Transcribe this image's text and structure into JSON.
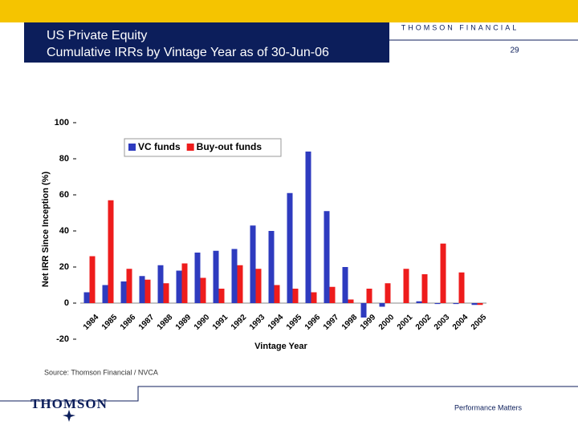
{
  "header": {
    "title": "US Private Equity",
    "subtitle": "Cumulative IRRs by Vintage Year as of 30-Jun-06",
    "company": "THOMSON FINANCIAL",
    "page_number": "29"
  },
  "chart_data": {
    "type": "bar",
    "y_label": "Net IRR Since Inception (%)",
    "x_label": "Vintage Year",
    "categories": [
      "1984",
      "1985",
      "1986",
      "1987",
      "1988",
      "1989",
      "1990",
      "1991",
      "1992",
      "1993",
      "1994",
      "1995",
      "1996",
      "1997",
      "1998",
      "1999",
      "2000",
      "2001",
      "2002",
      "2003",
      "2004",
      "2005"
    ],
    "series": [
      {
        "name": "VC funds",
        "color": "#2e3bbf",
        "values": [
          6,
          10,
          12,
          15,
          21,
          18,
          28,
          29,
          30,
          43,
          40,
          61,
          84,
          51,
          20,
          -8,
          -2,
          0,
          1,
          -0.5,
          -0.5,
          -1
        ]
      },
      {
        "name": "Buy-out funds",
        "color": "#ee1c1c",
        "values": [
          26,
          57,
          19,
          13,
          11,
          22,
          14,
          8,
          21,
          19,
          10,
          8,
          6,
          9,
          2,
          8,
          11,
          19,
          16,
          33,
          17,
          -1
        ]
      }
    ],
    "ylim": [
      -20,
      100
    ],
    "yticks": [
      -20,
      0,
      20,
      40,
      60,
      80,
      100
    ],
    "grid": false,
    "legend": "top"
  },
  "footer": {
    "source": "Source: Thomson Financial / NVCA",
    "logo": "THOMSON",
    "tagline": "Performance Matters"
  }
}
